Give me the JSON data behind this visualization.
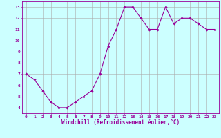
{
  "x": [
    0,
    1,
    2,
    3,
    4,
    5,
    6,
    7,
    8,
    9,
    10,
    11,
    12,
    13,
    14,
    15,
    16,
    17,
    18,
    19,
    20,
    21,
    22,
    23
  ],
  "y": [
    7,
    6.5,
    5.5,
    4.5,
    4.0,
    4.0,
    4.5,
    5.0,
    5.5,
    7.0,
    9.5,
    11.0,
    13.0,
    13.0,
    12.0,
    11.0,
    11.0,
    13.0,
    11.5,
    12.0,
    12.0,
    11.5,
    11.0,
    11.0
  ],
  "line_color": "#990099",
  "marker": "D",
  "marker_size": 1.8,
  "bg_color": "#ccffff",
  "grid_color": "#aaaaaa",
  "xlabel": "Windchill (Refroidissement éolien,°C)",
  "xlabel_color": "#990099",
  "tick_color": "#990099",
  "ylabel_ticks": [
    4,
    5,
    6,
    7,
    8,
    9,
    10,
    11,
    12,
    13
  ],
  "xlim": [
    -0.5,
    23.5
  ],
  "ylim": [
    3.5,
    13.5
  ],
  "line_width": 0.8,
  "tick_fontsize": 4.5,
  "xlabel_fontsize": 5.5
}
